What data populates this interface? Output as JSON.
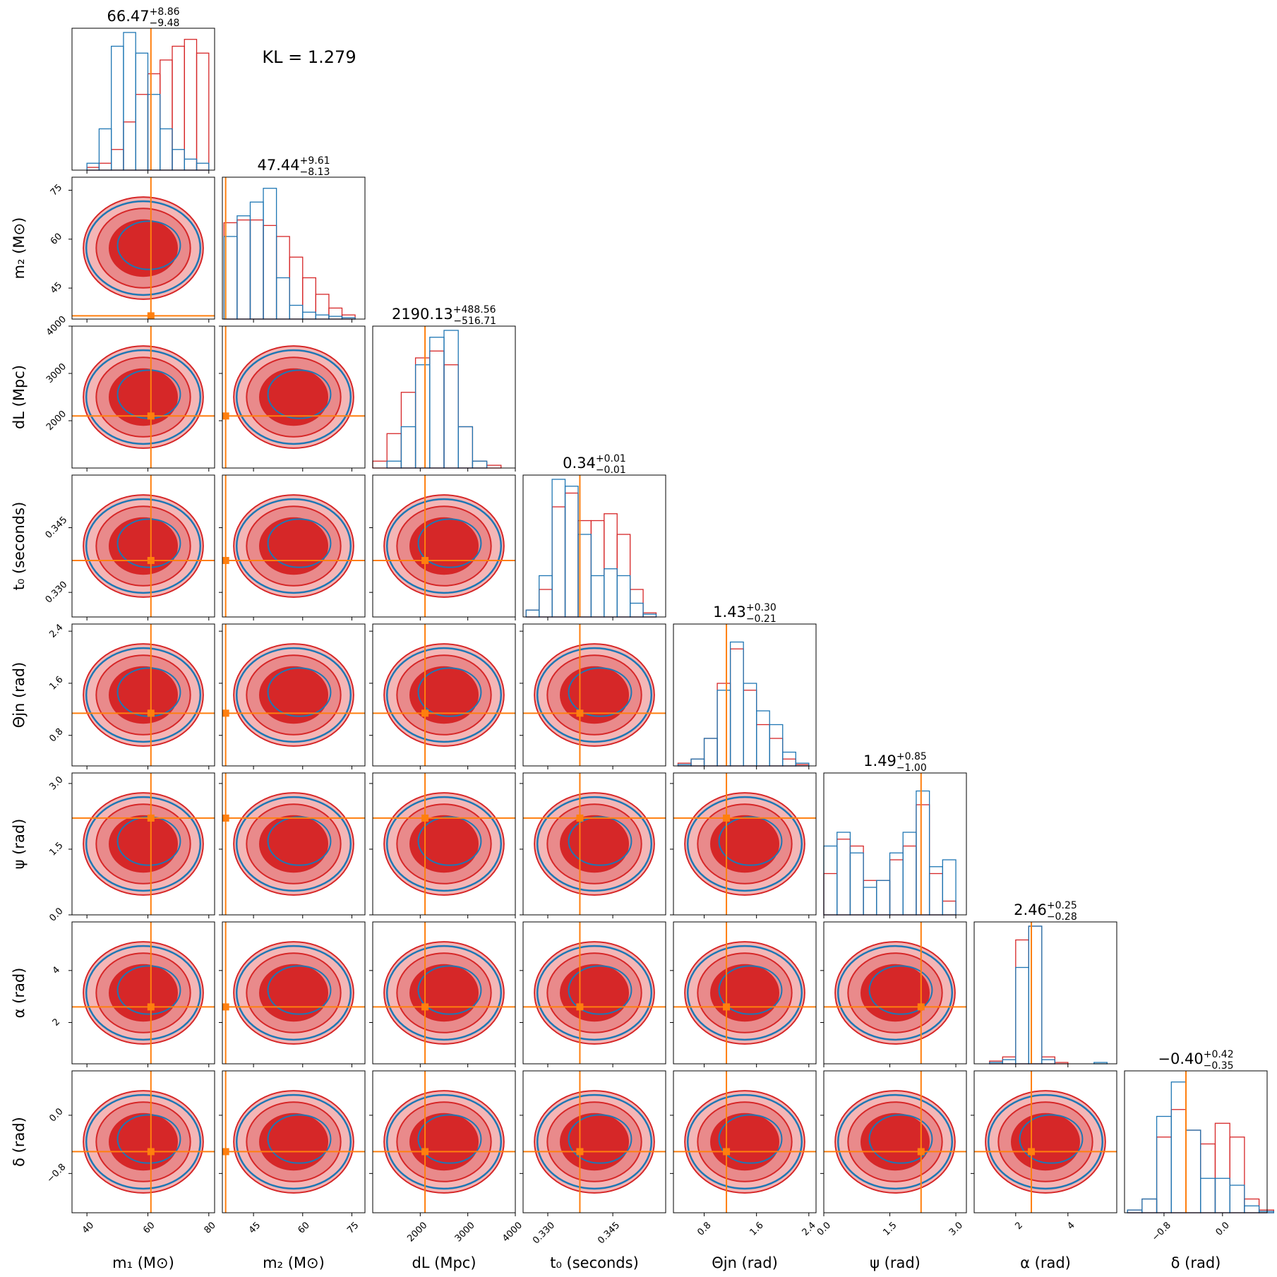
{
  "chart_data": {
    "type": "corner",
    "annotation": "KL = 1.279",
    "truth_color": "#ff7f0e",
    "hist_ylim": [
      0,
      1
    ],
    "parameters": [
      {
        "label": "m₁ (M⊙)",
        "title": {
          "median": "66.47",
          "upper": "+8.86",
          "lower": "−9.48"
        },
        "lim": [
          35.1,
          81.9
        ],
        "ticks": [
          40,
          60,
          80
        ],
        "truth": 61,
        "hist": {
          "bins": [
            40,
            44,
            48,
            52,
            56,
            60,
            64,
            68,
            72,
            76,
            80
          ],
          "series": [
            {
              "color": "#d62728",
              "values": [
                0.02,
                0.05,
                0.15,
                0.35,
                0.55,
                0.7,
                0.8,
                0.9,
                0.95,
                0.85
              ]
            },
            {
              "color": "#1f77b4",
              "values": [
                0.05,
                0.3,
                0.9,
                1.0,
                0.85,
                0.55,
                0.3,
                0.15,
                0.08,
                0.05
              ]
            }
          ]
        }
      },
      {
        "label": "m₂ (M⊙)",
        "title": {
          "median": "47.44",
          "upper": "+9.61",
          "lower": "−8.13"
        },
        "lim": [
          35.5,
          79
        ],
        "ticks": [
          45,
          60,
          75
        ],
        "truth": 36.5,
        "hist": {
          "bins": [
            36,
            40,
            44,
            48,
            52,
            56,
            60,
            64,
            68,
            72,
            76
          ],
          "series": [
            {
              "color": "#d62728",
              "values": [
                0.7,
                0.72,
                0.72,
                0.68,
                0.6,
                0.45,
                0.3,
                0.18,
                0.08,
                0.03
              ]
            },
            {
              "color": "#1f77b4",
              "values": [
                0.6,
                0.75,
                0.85,
                0.95,
                0.3,
                0.1,
                0.05,
                0.03,
                0.02,
                0.01
              ]
            }
          ]
        }
      },
      {
        "label": "dL (Mpc)",
        "title": {
          "median": "2190.13",
          "upper": "+488.56",
          "lower": "−516.71"
        },
        "lim": [
          1000,
          4000
        ],
        "ticks": [
          2000,
          3000,
          4000
        ],
        "truth": 2100,
        "hist": {
          "bins": [
            1000,
            1300,
            1600,
            1900,
            2200,
            2500,
            2800,
            3100,
            3400,
            3700,
            4000
          ],
          "series": [
            {
              "color": "#d62728",
              "values": [
                0.05,
                0.25,
                0.55,
                0.8,
                0.85,
                0.75,
                0.3,
                0.05,
                0.02,
                0
              ]
            },
            {
              "color": "#1f77b4",
              "values": [
                0,
                0.05,
                0.3,
                0.75,
                0.95,
                1.0,
                0.3,
                0.05,
                0,
                0
              ]
            }
          ]
        }
      },
      {
        "label": "t₀ (seconds)",
        "title": {
          "median": "0.34",
          "upper": "+0.01",
          "lower": "−0.01"
        },
        "lim": [
          0.3243,
          0.3572
        ],
        "ticks": [
          {
            "value": 0.33,
            "label": "0.330"
          },
          0.345
        ],
        "truth": 0.3374,
        "hist": {
          "bins": [
            0.325,
            0.328,
            0.331,
            0.334,
            0.337,
            0.34,
            0.343,
            0.346,
            0.349,
            0.352,
            0.355
          ],
          "series": [
            {
              "color": "#d62728",
              "values": [
                0.05,
                0.2,
                0.8,
                0.9,
                0.7,
                0.7,
                0.75,
                0.6,
                0.2,
                0.03
              ]
            },
            {
              "color": "#1f77b4",
              "values": [
                0.05,
                0.3,
                1.0,
                0.95,
                0.6,
                0.3,
                0.35,
                0.3,
                0.1,
                0.02
              ]
            }
          ]
        }
      },
      {
        "label": "Θjn (rad)",
        "title": {
          "median": "1.43",
          "upper": "+0.30",
          "lower": "−0.21"
        },
        "lim": [
          0.33,
          2.51
        ],
        "ticks": [
          0.8,
          1.6,
          2.4
        ],
        "truth": 1.14,
        "hist": {
          "bins": [
            0.4,
            0.6,
            0.8,
            1.0,
            1.2,
            1.4,
            1.6,
            1.8,
            2.0,
            2.2,
            2.4
          ],
          "series": [
            {
              "color": "#d62728",
              "values": [
                0.02,
                0.05,
                0.2,
                0.6,
                0.85,
                0.55,
                0.3,
                0.2,
                0.05,
                0.01
              ]
            },
            {
              "color": "#1f77b4",
              "values": [
                0.01,
                0.05,
                0.2,
                0.55,
                0.9,
                0.6,
                0.4,
                0.3,
                0.1,
                0.02
              ]
            }
          ]
        }
      },
      {
        "label": "ψ (rad)",
        "title": {
          "median": "1.49",
          "upper": "+0.85",
          "lower": "−1.00"
        },
        "lim": [
          0,
          3.24
        ],
        "ticks": [
          {
            "value": 0,
            "label": "0.0"
          },
          1.5,
          {
            "value": 3,
            "label": "3.0"
          }
        ],
        "truth": 2.21,
        "hist": {
          "bins": [
            0,
            0.3,
            0.6,
            0.9,
            1.2,
            1.5,
            1.8,
            2.1,
            2.4,
            2.7,
            3.0
          ],
          "series": [
            {
              "color": "#d62728",
              "values": [
                0.3,
                0.55,
                0.5,
                0.25,
                0.25,
                0.4,
                0.5,
                0.8,
                0.3,
                0.1
              ]
            },
            {
              "color": "#1f77b4",
              "values": [
                0.5,
                0.6,
                0.45,
                0.2,
                0.25,
                0.45,
                0.6,
                0.9,
                0.35,
                0.4
              ]
            }
          ]
        }
      },
      {
        "label": "α (rad)",
        "title": {
          "median": "2.46",
          "upper": "+0.25",
          "lower": "−0.28"
        },
        "lim": [
          0.41,
          5.87
        ],
        "ticks": [
          2,
          4
        ],
        "truth": 2.6,
        "hist": {
          "bins": [
            0.5,
            1.0,
            1.5,
            2.0,
            2.5,
            3.0,
            3.5,
            4.0,
            4.5,
            5.0,
            5.5
          ],
          "series": [
            {
              "color": "#d62728",
              "values": [
                0,
                0.02,
                0.05,
                0.9,
                1.0,
                0.05,
                0.01,
                0,
                0,
                0
              ]
            },
            {
              "color": "#1f77b4",
              "values": [
                0,
                0.01,
                0.03,
                0.7,
                1.0,
                0.03,
                0,
                0,
                0,
                0.01
              ]
            }
          ]
        }
      },
      {
        "label": "δ (rad)",
        "title": {
          "median": "−0.40",
          "upper": "+0.42",
          "lower": "−0.35"
        },
        "lim": [
          -1.34,
          0.61
        ],
        "ticks": [
          {
            "value": -0.8,
            "label": "−0.8"
          },
          {
            "value": 0,
            "label": "0.0"
          }
        ],
        "truth": -0.5,
        "hist": {
          "bins": [
            -1.3,
            -1.1,
            -0.9,
            -0.7,
            -0.5,
            -0.3,
            -0.1,
            0.1,
            0.3,
            0.5,
            0.7
          ],
          "series": [
            {
              "color": "#d62728",
              "values": [
                0.02,
                0.1,
                0.55,
                0.75,
                0.6,
                0.5,
                0.65,
                0.55,
                0.1,
                0.02
              ]
            },
            {
              "color": "#1f77b4",
              "values": [
                0.02,
                0.1,
                0.7,
                0.95,
                0.6,
                0.25,
                0.25,
                0.2,
                0.05,
                0.01
              ]
            }
          ]
        }
      }
    ]
  }
}
